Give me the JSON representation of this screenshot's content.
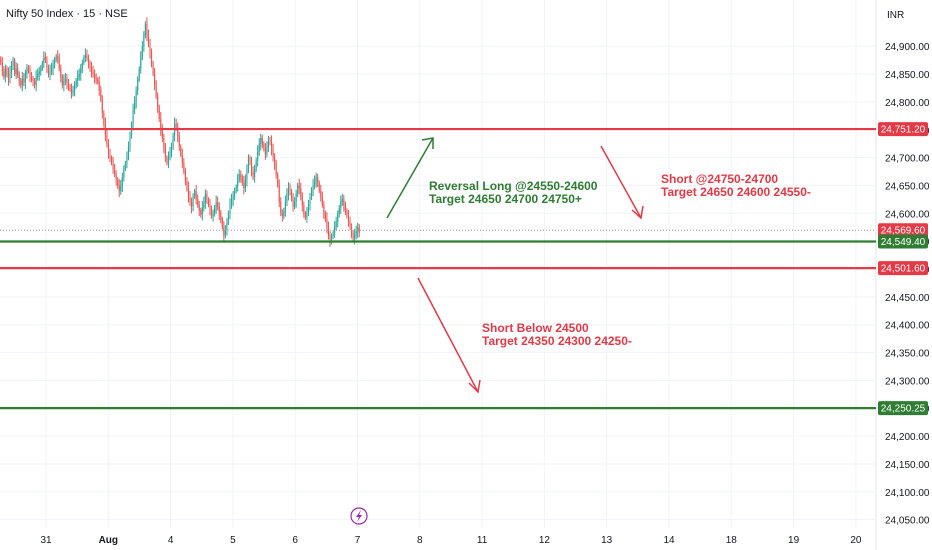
{
  "header": {
    "title": "Nifty 50 Index · 15 · NSE",
    "currency": "INR"
  },
  "colors": {
    "up": "#26a69a",
    "down": "#ef5350",
    "green_line": "#2e7d32",
    "red_line": "#e53946",
    "grid": "#f0f3fa",
    "axis_text": "#131722",
    "flag_icon": "#9c27b0"
  },
  "annotations": {
    "long": {
      "line1": "Reversal Long @24550-24600",
      "line2": "Target 24650 24700 24750+"
    },
    "short_top": {
      "line1": "Short @24750-24700",
      "line2": "Target 24650 24600 24550-"
    },
    "short_below": {
      "line1": "Short Below 24500",
      "line2": "Target 24350 24300 24250-"
    }
  },
  "chart_data": {
    "type": "candlestick",
    "title": "Nifty 50 Index · 15 · NSE",
    "ylabel": "INR",
    "ylim": [
      24035,
      24965
    ],
    "y_ticks": [
      24050,
      24100,
      24150,
      24200,
      24250,
      24300,
      24350,
      24400,
      24450,
      24500,
      24550,
      24600,
      24650,
      24700,
      24750,
      24800,
      24850,
      24900
    ],
    "y_tick_labels": [
      "24,050.00",
      "24,100.00",
      "24,150.00",
      "24,200.00",
      "24,250.00",
      "24,300.00",
      "24,350.00",
      "24,400.00",
      "24,450.00",
      "24,500.00",
      "24,550.00",
      "24,600.00",
      "24,650.00",
      "24,700.00",
      "24,750.00",
      "24,800.00",
      "24,850.00",
      "24,900.00"
    ],
    "x_tick_labels": [
      "31",
      "Aug",
      "4",
      "5",
      "6",
      "7",
      "8",
      "11",
      "12",
      "13",
      "14",
      "18",
      "19",
      "20"
    ],
    "price_levels": [
      {
        "value": 24751.2,
        "label": "24,751.20",
        "color": "red"
      },
      {
        "value": 24569.6,
        "label": "24,569.60",
        "color": "red",
        "dotted": true
      },
      {
        "value": 24549.4,
        "label": "24,549.40",
        "color": "green"
      },
      {
        "value": 24501.6,
        "label": "24,501.60",
        "color": "red"
      },
      {
        "value": 24250.25,
        "label": "24,250.25",
        "color": "green"
      }
    ],
    "series": [
      {
        "values_close": [
          24870,
          24855,
          24845,
          24860,
          24850,
          24840,
          24855,
          24865,
          24875,
          24850,
          24860,
          24848,
          24838,
          24830,
          24842,
          24835,
          24850,
          24862,
          24855,
          24845,
          24840,
          24838,
          24830,
          24845,
          24850,
          24855,
          24860,
          24870,
          24880,
          24875,
          24862,
          24850,
          24855,
          24860,
          24868,
          24875,
          24882,
          24878,
          24860,
          24845,
          24830,
          24837,
          24842,
          24835,
          24828,
          24822,
          24815,
          24820,
          24830,
          24838,
          24845,
          24850,
          24860,
          24870,
          24880,
          24885,
          24878,
          24870,
          24860,
          24855,
          24850,
          24845,
          24840,
          24835,
          24820,
          24805,
          24780,
          24760,
          24740,
          24725,
          24710,
          24700,
          24690,
          24680,
          24670,
          24660,
          24650,
          24640,
          24650,
          24665,
          24680,
          24690,
          24700,
          24720,
          24740,
          24760,
          24785,
          24800,
          24820,
          24840,
          24860,
          24880,
          24900,
          24920,
          24940,
          24920,
          24905,
          24890,
          24870,
          24850,
          24830,
          24810,
          24790,
          24770,
          24750,
          24735,
          24720,
          24700,
          24690,
          24700,
          24710,
          24720,
          24740,
          24760,
          24755,
          24740,
          24720,
          24705,
          24690,
          24675,
          24660,
          24645,
          24630,
          24620,
          24612,
          24630,
          24640,
          24625,
          24615,
          24605,
          24598,
          24610,
          24620,
          24635,
          24625,
          24615,
          24605,
          24595,
          24600,
          24610,
          24620,
          24612,
          24600,
          24590,
          24575,
          24560,
          24570,
          24585,
          24600,
          24615,
          24625,
          24632,
          24640,
          24648,
          24660,
          24670,
          24665,
          24655,
          24645,
          24660,
          24680,
          24700,
          24690,
          24675,
          24665,
          24680,
          24695,
          24710,
          24725,
          24735,
          24725,
          24715,
          24705,
          24720,
          24732,
          24728,
          24715,
          24700,
          24690,
          24670,
          24650,
          24620,
          24600,
          24595,
          24605,
          24620,
          24635,
          24648,
          24640,
          24625,
          24612,
          24620,
          24635,
          24650,
          24645,
          24630,
          24615,
          24600,
          24592,
          24600,
          24615,
          24630,
          24642,
          24650,
          24658,
          24665,
          24655,
          24640,
          24630,
          24615,
          24600,
          24590,
          24575,
          24560,
          24552,
          24558,
          24565,
          24575,
          24585,
          24598,
          24610,
          24620,
          24625,
          24615,
          24605,
          24595,
          24585,
          24575,
          24565,
          24555,
          24560,
          24568,
          24575,
          24565
        ]
      }
    ]
  }
}
